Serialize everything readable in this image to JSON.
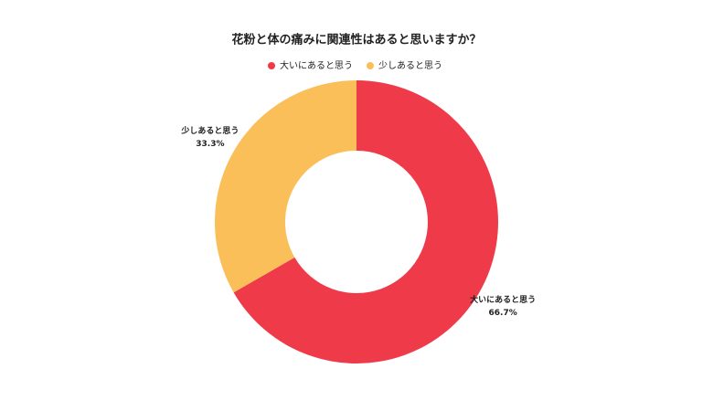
{
  "chart_data": {
    "type": "donut",
    "title": "花粉と体の痛みに関連性はあると思いますか？",
    "categories": [
      "大いにあると思う",
      "少しあると思う"
    ],
    "values": [
      66.7,
      33.3
    ],
    "value_labels": [
      "66.7%",
      "33.3%"
    ],
    "colors": [
      "#ef3a4a",
      "#fbbf5a"
    ]
  }
}
